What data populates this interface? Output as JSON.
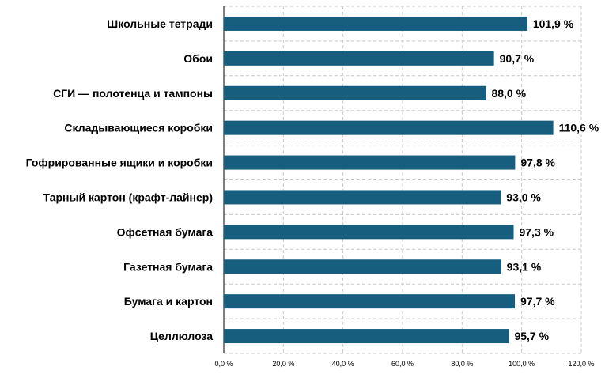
{
  "chart_data": {
    "type": "bar",
    "orientation": "horizontal",
    "categories": [
      "Школьные тетради",
      "Обои",
      "СГИ — полотенца и тампоны",
      "Складывающиеся коробки",
      "Гофрированные ящики и коробки",
      "Тарный картон (крафт-лайнер)",
      "Офсетная бумага",
      "Газетная бумага",
      "Бумага и картон",
      "Целлюлоза"
    ],
    "values": [
      101.9,
      90.7,
      88.0,
      110.6,
      97.8,
      93.0,
      97.3,
      93.1,
      97.7,
      95.7
    ],
    "value_labels": [
      "101,9 %",
      "90,7 %",
      "88,0 %",
      "110,6 %",
      "97,8 %",
      "93,0 %",
      "97,3 %",
      "93,1 %",
      "97,7 %",
      "95,7 %"
    ],
    "xlim": [
      0,
      120
    ],
    "xticks": [
      0,
      20,
      40,
      60,
      80,
      100,
      120
    ],
    "xtick_labels": [
      "0,0 %",
      "20,0 %",
      "40,0 %",
      "60,0 %",
      "80,0 %",
      "100,0 %",
      "120,0 %"
    ],
    "bar_color": "#175d7e",
    "grid": true,
    "legend": "none",
    "title": "",
    "xlabel": "",
    "ylabel": ""
  }
}
